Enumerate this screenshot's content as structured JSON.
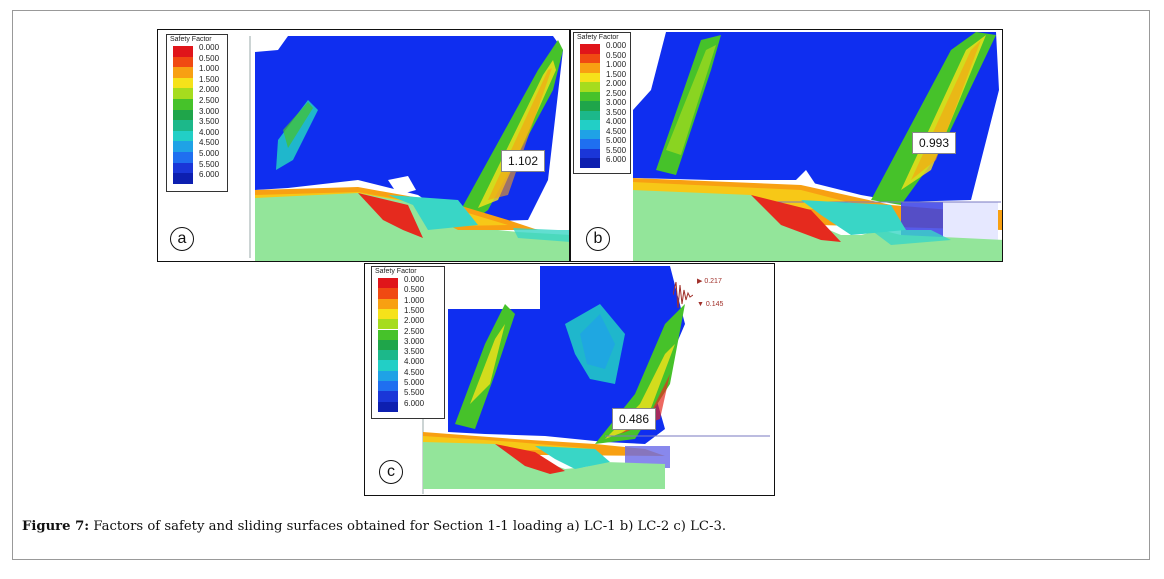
{
  "legend": {
    "title": "Safety Factor",
    "ticks": [
      "0.000",
      "0.500",
      "1.000",
      "1.500",
      "2.000",
      "2.500",
      "3.000",
      "3.500",
      "4.000",
      "4.500",
      "5.000",
      "5.500",
      "6.000"
    ],
    "colors": [
      "#e0151a",
      "#f04a12",
      "#f8a012",
      "#f6e21a",
      "#a6dc1e",
      "#46c22a",
      "#1fa54a",
      "#1cb88a",
      "#22cfc6",
      "#1fa2e6",
      "#1f6ff0",
      "#1a36d8",
      "#0d1fb0"
    ]
  },
  "panels": [
    {
      "label": "a",
      "fs": "1.102"
    },
    {
      "label": "b",
      "fs": "0.993"
    },
    {
      "label": "c",
      "fs": "0.486",
      "seismic": {
        "peak": "0.217",
        "trough": "0.145"
      }
    }
  ],
  "colors": {
    "blue_field": "#0f2ef0",
    "ground": "#93e59a",
    "slide_red": "#e52a1e",
    "slide_cyan": "#39d6c6"
  },
  "caption": {
    "label": "Figure 7:",
    "text": " Factors of safety and sliding surfaces obtained for Section 1-1 loading a) LC-1 b) LC-2 c) LC-3."
  }
}
